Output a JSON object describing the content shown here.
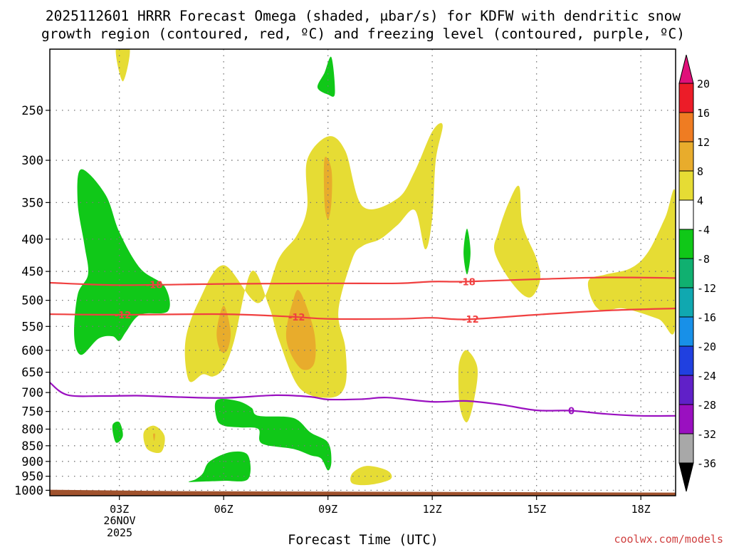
{
  "chart_data": {
    "type": "heatmap",
    "title_lines": [
      "2025112601 HRRR Forecast Omega (shaded, μbar/s) for KDFW with dendritic snow",
      "growth region (contoured, red, ºC) and freezing level (contoured, purple, ºC)"
    ],
    "xlabel": "Forecast Time (UTC)",
    "ylabel": "",
    "x_ticks": [
      {
        "t": 3,
        "label": "03Z"
      },
      {
        "t": 6,
        "label": "06Z"
      },
      {
        "t": 9,
        "label": "09Z"
      },
      {
        "t": 12,
        "label": "12Z"
      },
      {
        "t": 15,
        "label": "15Z"
      },
      {
        "t": 18,
        "label": "18Z"
      }
    ],
    "date_label": [
      "26NOV",
      "2025"
    ],
    "xlim": [
      1,
      19
    ],
    "y_ticks": [
      250,
      300,
      350,
      400,
      450,
      500,
      550,
      600,
      650,
      700,
      750,
      800,
      850,
      900,
      950,
      1000
    ],
    "ylim": [
      1020,
      200
    ],
    "y_scale": "log",
    "grid": true,
    "watermark": "coolwx.com/models",
    "colorbar": {
      "labels": [
        "20",
        "16",
        "12",
        "8",
        "4",
        "-4",
        "-8",
        "-12",
        "-16",
        "-20",
        "-24",
        "-28",
        "-32",
        "-36"
      ],
      "colors": [
        "#ec1c28",
        "#ef7c22",
        "#e8ac2c",
        "#e6dc34",
        "#ffffff",
        "#10c818",
        "#10b070",
        "#10a8b0",
        "#1890e8",
        "#2040e0",
        "#6020c8",
        "#9a10c0",
        "#a8a8a8"
      ],
      "top_color": "#e0107a",
      "bottom_color": "#000000"
    },
    "colors": {
      "yellow": "#e6dc34",
      "orange": "#e8ac2c",
      "green": "#10c818",
      "dgz": "#f04040",
      "freezing": "#9a10c0",
      "ground": "#a0522d"
    },
    "series": [
      {
        "name": "-18",
        "kind": "dgz",
        "points": [
          [
            1,
            469
          ],
          [
            3,
            473
          ],
          [
            6,
            471
          ],
          [
            9,
            470
          ],
          [
            11,
            470
          ],
          [
            12,
            467
          ],
          [
            13,
            467
          ],
          [
            15,
            463
          ],
          [
            17,
            460
          ],
          [
            19,
            461
          ]
        ],
        "labels": [
          {
            "t": 4.0,
            "text": "-18"
          },
          {
            "t": 13.0,
            "text": "-18"
          }
        ]
      },
      {
        "name": "-12",
        "kind": "dgz",
        "points": [
          [
            1,
            526
          ],
          [
            3,
            527
          ],
          [
            6,
            526
          ],
          [
            8,
            531
          ],
          [
            9,
            535
          ],
          [
            11,
            535
          ],
          [
            12,
            533
          ],
          [
            13,
            536
          ],
          [
            15,
            527
          ],
          [
            17,
            519
          ],
          [
            19,
            515
          ]
        ],
        "labels": [
          {
            "t": 3.1,
            "text": "-12"
          },
          {
            "t": 8.1,
            "text": "-12"
          },
          {
            "t": 13.1,
            "text": "-12"
          }
        ]
      },
      {
        "name": "0",
        "kind": "freezing",
        "points": [
          [
            1,
            675
          ],
          [
            1.5,
            706
          ],
          [
            2.5,
            709
          ],
          [
            3.5,
            708
          ],
          [
            4.5,
            711
          ],
          [
            6,
            714
          ],
          [
            7.5,
            707
          ],
          [
            8.5,
            711
          ],
          [
            9,
            718
          ],
          [
            10,
            717
          ],
          [
            10.7,
            713
          ],
          [
            12,
            724
          ],
          [
            13,
            722
          ],
          [
            14,
            732
          ],
          [
            15,
            747
          ],
          [
            16,
            748
          ],
          [
            17,
            757
          ],
          [
            18,
            762
          ],
          [
            19,
            762
          ]
        ],
        "labels": [
          {
            "t": 16.0,
            "text": "0"
          }
        ]
      }
    ],
    "shaded_regions": [
      {
        "range": "4 to 8",
        "color": "yellow",
        "points": [
          [
            2.9,
            200
          ],
          [
            3.3,
            200
          ],
          [
            3.1,
            225
          ]
        ]
      },
      {
        "range": "-4 to -8",
        "color": "green",
        "points": [
          [
            8.7,
            230
          ],
          [
            8.9,
            218
          ],
          [
            9.1,
            206
          ],
          [
            9.2,
            235
          ],
          [
            9.0,
            236
          ]
        ]
      },
      {
        "range": "4 to 8",
        "color": "yellow",
        "points": [
          [
            8.4,
            300
          ],
          [
            9.0,
            275
          ],
          [
            9.5,
            290
          ],
          [
            10.0,
            355
          ],
          [
            11.0,
            345
          ],
          [
            11.5,
            312
          ],
          [
            12.0,
            270
          ],
          [
            12.3,
            264
          ],
          [
            12.1,
            300
          ],
          [
            12.0,
            370
          ],
          [
            11.8,
            415
          ],
          [
            11.5,
            360
          ],
          [
            11.0,
            380
          ],
          [
            10.5,
            400
          ],
          [
            10.0,
            410
          ],
          [
            9.7,
            430
          ],
          [
            9.3,
            520
          ],
          [
            9.5,
            595
          ],
          [
            9.5,
            680
          ],
          [
            9.1,
            713
          ],
          [
            8.2,
            690
          ],
          [
            7.6,
            580
          ],
          [
            7.3,
            510
          ],
          [
            6.8,
            450
          ],
          [
            6.3,
            580
          ],
          [
            6.0,
            640
          ],
          [
            5.7,
            660
          ],
          [
            5.4,
            655
          ],
          [
            5.0,
            670
          ],
          [
            4.9,
            580
          ],
          [
            5.3,
            500
          ],
          [
            6.0,
            440
          ],
          [
            7.0,
            505
          ],
          [
            7.6,
            428
          ],
          [
            8.1,
            395
          ],
          [
            8.4,
            357
          ]
        ]
      },
      {
        "range": "8 to 12",
        "color": "orange",
        "points": [
          [
            8.9,
            298
          ],
          [
            9.1,
            310
          ],
          [
            9.1,
            350
          ],
          [
            9.0,
            372
          ],
          [
            8.9,
            350
          ]
        ]
      },
      {
        "range": "8 to 12",
        "color": "orange",
        "points": [
          [
            5.8,
            560
          ],
          [
            6.0,
            510
          ],
          [
            6.2,
            560
          ],
          [
            6.1,
            600
          ],
          [
            5.9,
            600
          ]
        ]
      },
      {
        "range": "8 to 12",
        "color": "orange",
        "points": [
          [
            8.2,
            485
          ],
          [
            8.6,
            560
          ],
          [
            8.6,
            630
          ],
          [
            8.2,
            640
          ],
          [
            7.8,
            575
          ],
          [
            8.0,
            500
          ]
        ]
      },
      {
        "range": "-4 to -8",
        "color": "green",
        "points": [
          [
            1.9,
            310
          ],
          [
            2.6,
            340
          ],
          [
            3.0,
            390
          ],
          [
            3.6,
            445
          ],
          [
            4.3,
            475
          ],
          [
            4.4,
            520
          ],
          [
            3.6,
            527
          ],
          [
            3.2,
            560
          ],
          [
            3.0,
            580
          ],
          [
            2.8,
            570
          ],
          [
            2.4,
            575
          ],
          [
            1.9,
            610
          ],
          [
            1.7,
            570
          ],
          [
            1.8,
            490
          ],
          [
            2.1,
            455
          ],
          [
            2.0,
            410
          ],
          [
            1.8,
            350
          ]
        ]
      },
      {
        "range": "4 to 8",
        "color": "yellow",
        "points": [
          [
            13.9,
            390
          ],
          [
            14.2,
            350
          ],
          [
            14.5,
            330
          ],
          [
            14.6,
            380
          ],
          [
            15.0,
            430
          ],
          [
            15.1,
            465
          ],
          [
            14.8,
            495
          ],
          [
            14.3,
            470
          ],
          [
            13.8,
            420
          ]
        ]
      },
      {
        "range": "4 to 8",
        "color": "yellow",
        "points": [
          [
            16.5,
            465
          ],
          [
            17.0,
            455
          ],
          [
            17.7,
            445
          ],
          [
            18.2,
            420
          ],
          [
            18.7,
            370
          ],
          [
            19.0,
            340
          ],
          [
            19.0,
            550
          ],
          [
            18.5,
            535
          ],
          [
            17.5,
            515
          ],
          [
            16.9,
            520
          ],
          [
            16.6,
            500
          ]
        ]
      },
      {
        "range": "-4 to -8",
        "color": "green",
        "points": [
          [
            12.9,
            420
          ],
          [
            13.0,
            385
          ],
          [
            13.1,
            420
          ],
          [
            13.0,
            455
          ]
        ]
      },
      {
        "range": "4 to 8",
        "color": "yellow",
        "points": [
          [
            12.8,
            620
          ],
          [
            13.0,
            600
          ],
          [
            13.3,
            640
          ],
          [
            13.2,
            720
          ],
          [
            13.0,
            780
          ],
          [
            12.8,
            740
          ],
          [
            12.75,
            660
          ]
        ]
      },
      {
        "range": "-4 to -8",
        "color": "green",
        "points": [
          [
            5.8,
            720
          ],
          [
            6.4,
            722
          ],
          [
            6.8,
            740
          ],
          [
            7.0,
            762
          ],
          [
            8.0,
            768
          ],
          [
            8.5,
            810
          ],
          [
            9.0,
            840
          ],
          [
            9.1,
            900
          ],
          [
            9.0,
            930
          ],
          [
            8.8,
            890
          ],
          [
            8.5,
            880
          ],
          [
            8.0,
            860
          ],
          [
            7.1,
            843
          ],
          [
            7.0,
            800
          ],
          [
            6.5,
            795
          ],
          [
            6.0,
            790
          ],
          [
            5.8,
            770
          ]
        ]
      },
      {
        "range": "-4 to -8",
        "color": "green",
        "points": [
          [
            2.8,
            790
          ],
          [
            3.0,
            780
          ],
          [
            3.1,
            820
          ],
          [
            2.9,
            840
          ]
        ]
      },
      {
        "range": "4 to 8",
        "color": "yellow",
        "points": [
          [
            3.7,
            810
          ],
          [
            4.0,
            790
          ],
          [
            4.3,
            820
          ],
          [
            4.2,
            870
          ],
          [
            3.8,
            860
          ]
        ]
      },
      {
        "range": "8 to 12",
        "color": "orange",
        "points": [
          [
            3.97,
            815
          ],
          [
            4.03,
            815
          ],
          [
            4.0,
            835
          ]
        ]
      },
      {
        "range": "-4 to -8",
        "color": "green",
        "points": [
          [
            5.4,
            940
          ],
          [
            5.6,
            900
          ],
          [
            6.2,
            870
          ],
          [
            6.7,
            880
          ],
          [
            6.7,
            960
          ],
          [
            6.0,
            966
          ],
          [
            5.5,
            968
          ],
          [
            5.0,
            970
          ],
          [
            5.2,
            960
          ]
        ]
      },
      {
        "range": "4 to 8",
        "color": "yellow",
        "points": [
          [
            9.7,
            940
          ],
          [
            10.1,
            915
          ],
          [
            10.7,
            930
          ],
          [
            10.8,
            960
          ],
          [
            10.2,
            980
          ],
          [
            9.7,
            975
          ]
        ]
      }
    ]
  }
}
